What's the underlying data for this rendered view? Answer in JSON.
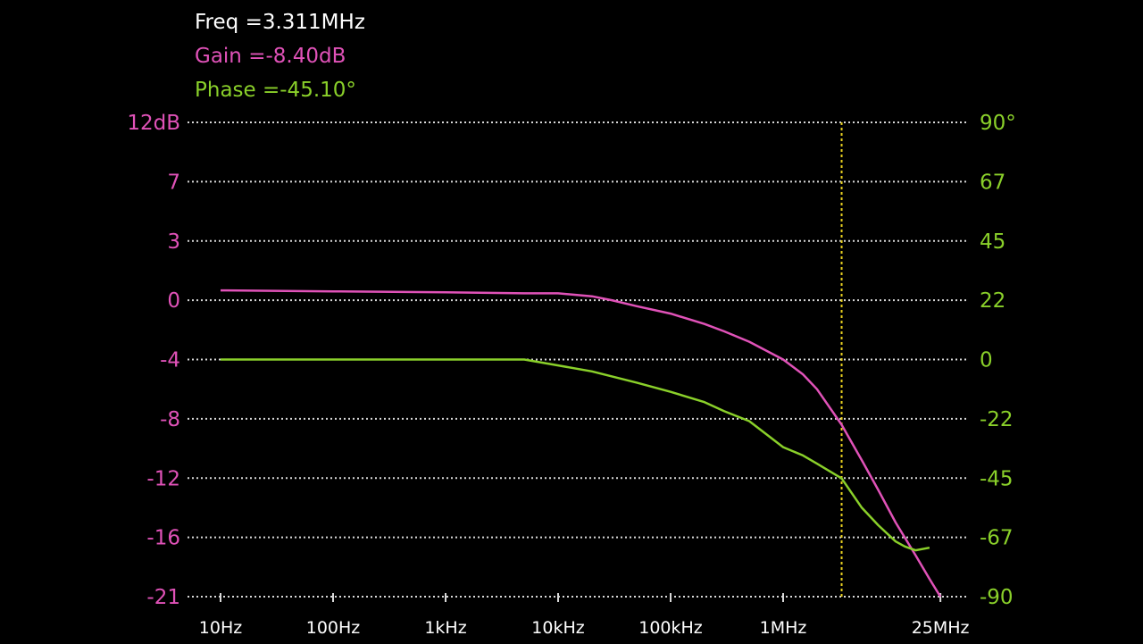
{
  "readout": {
    "freq": "Freq =3.311MHz",
    "gain": "Gain =-8.40dB",
    "phase": "Phase =-45.10°"
  },
  "colors": {
    "background": "#000000",
    "freq_text": "#ffffff",
    "gain": "#e052b8",
    "phase": "#8ad02a",
    "grid": "#d8d8d8",
    "cursor": "#e8d020",
    "x_labels": "#ffffff"
  },
  "chart_data": {
    "type": "line",
    "title": "",
    "xlabel": "",
    "ylabel": "",
    "x_scale": "log",
    "xlim": [
      10,
      25000000
    ],
    "x_ticks": [
      {
        "value": 10,
        "label": "10Hz"
      },
      {
        "value": 100,
        "label": "100Hz"
      },
      {
        "value": 1000,
        "label": "1kHz"
      },
      {
        "value": 10000,
        "label": "10kHz"
      },
      {
        "value": 100000,
        "label": "100kHz"
      },
      {
        "value": 1000000,
        "label": "1MHz"
      },
      {
        "value": 25000000,
        "label": "25MHz"
      }
    ],
    "left_axis": {
      "unit": "dB",
      "ticks": [
        "12dB",
        "7",
        "3",
        "0",
        "-4",
        "-8",
        "-12",
        "-16",
        "-21"
      ],
      "range": [
        -21,
        12
      ]
    },
    "right_axis": {
      "unit": "°",
      "ticks": [
        "90°",
        "67",
        "45",
        "22",
        "0",
        "-22",
        "-45",
        "-67",
        "-90"
      ],
      "range": [
        -90,
        90
      ]
    },
    "grid": true,
    "cursor_x": 3311000,
    "series": [
      {
        "key": "gain",
        "axis": "left",
        "x": [
          10,
          100,
          1000,
          5000,
          10000,
          20000,
          30000,
          50000,
          100000,
          200000,
          300000,
          500000,
          1000000,
          1500000,
          2000000,
          3311000,
          5000000,
          7000000,
          10000000,
          15000000,
          20000000,
          25000000
        ],
        "y": [
          0.5,
          0.45,
          0.4,
          0.35,
          0.35,
          0.2,
          0.0,
          -0.4,
          -0.9,
          -1.6,
          -2.1,
          -2.8,
          -4.0,
          -5.0,
          -6.0,
          -8.4,
          -10.8,
          -12.8,
          -15.0,
          -17.5,
          -19.5,
          -21.0
        ]
      },
      {
        "key": "phase",
        "axis": "right",
        "x": [
          10,
          100,
          1000,
          5000,
          10000,
          20000,
          50000,
          100000,
          200000,
          300000,
          500000,
          1000000,
          1500000,
          2000000,
          3311000,
          5000000,
          7000000,
          10000000,
          12000000,
          15000000,
          20000000
        ],
        "y": [
          0,
          0,
          0,
          0,
          -2.2,
          -4.4,
          -8.6,
          -12.0,
          -15.8,
          -19.2,
          -22.9,
          -33.0,
          -36.2,
          -39.4,
          -45.1,
          -56.0,
          -62.5,
          -68.6,
          -70.5,
          -72.0,
          -71.0
        ]
      }
    ]
  }
}
